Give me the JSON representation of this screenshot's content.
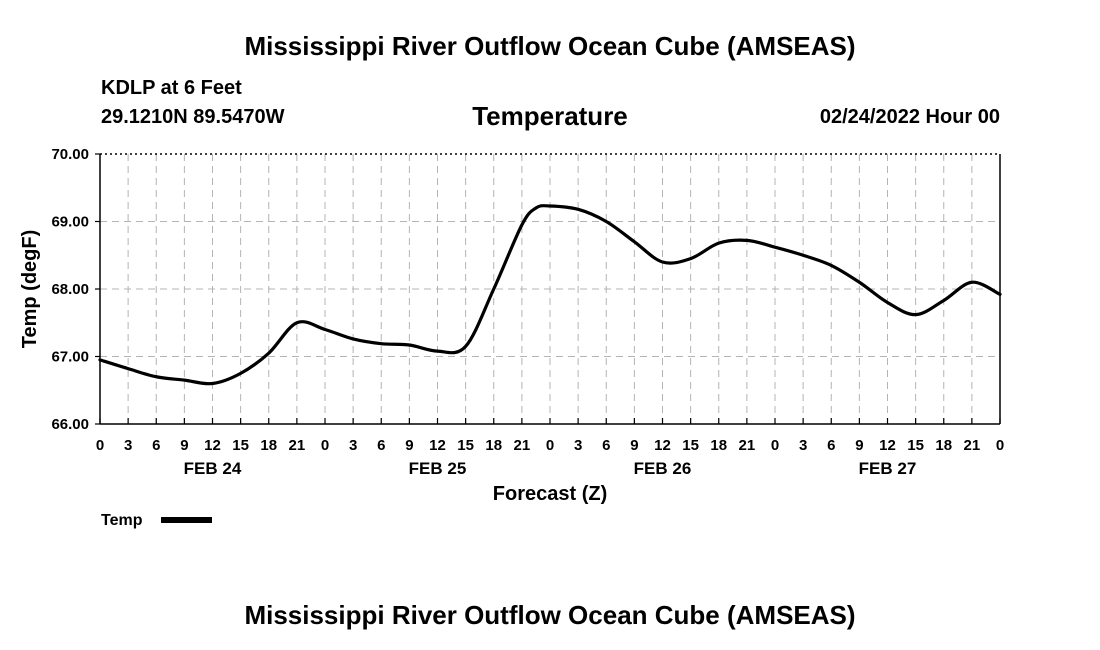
{
  "page": {
    "title": "Mississippi River Outflow Ocean Cube (AMSEAS)",
    "footer_title": "Mississippi River Outflow Ocean Cube (AMSEAS)",
    "station": "KDLP at 6 Feet",
    "coords": "29.1210N  89.5470W",
    "variable": "Temperature",
    "datetime": "02/24/2022 Hour 00"
  },
  "chart_data": {
    "type": "line",
    "title": "Temperature",
    "xlabel": "Forecast (Z)",
    "ylabel": "Temp (degF)",
    "ylim": [
      66.0,
      70.0
    ],
    "yticks": [
      "66.00",
      "67.00",
      "68.00",
      "69.00",
      "70.00"
    ],
    "xlim": [
      0,
      96
    ],
    "xtick_labels": [
      "0",
      "3",
      "6",
      "9",
      "12",
      "15",
      "18",
      "21",
      "0",
      "3",
      "6",
      "9",
      "12",
      "15",
      "18",
      "21",
      "0",
      "3",
      "6",
      "9",
      "12",
      "15",
      "18",
      "21",
      "0",
      "3",
      "6",
      "9",
      "12",
      "15",
      "18",
      "21",
      "0"
    ],
    "day_labels": [
      "FEB 24",
      "FEB 25",
      "FEB 26",
      "FEB 27"
    ],
    "grid": true,
    "legend": {
      "position": "bottom-left",
      "label": "Temp"
    },
    "series": [
      {
        "name": "Temp",
        "color": "#000000",
        "x": [
          0,
          3,
          6,
          9,
          12,
          15,
          18,
          21,
          24,
          27,
          30,
          33,
          36,
          39,
          42,
          45,
          46.5,
          48,
          51,
          54,
          57,
          60,
          63,
          66,
          69,
          72,
          75,
          78,
          81,
          84,
          87,
          90,
          93,
          96
        ],
        "y": [
          66.95,
          66.82,
          66.7,
          66.65,
          66.6,
          66.75,
          67.05,
          67.5,
          67.4,
          67.26,
          67.19,
          67.17,
          67.08,
          67.15,
          68.0,
          68.95,
          69.2,
          69.23,
          69.18,
          69.0,
          68.7,
          68.4,
          68.45,
          68.68,
          68.72,
          68.62,
          68.5,
          68.35,
          68.1,
          67.8,
          67.62,
          67.83,
          68.1,
          67.92
        ]
      }
    ]
  }
}
